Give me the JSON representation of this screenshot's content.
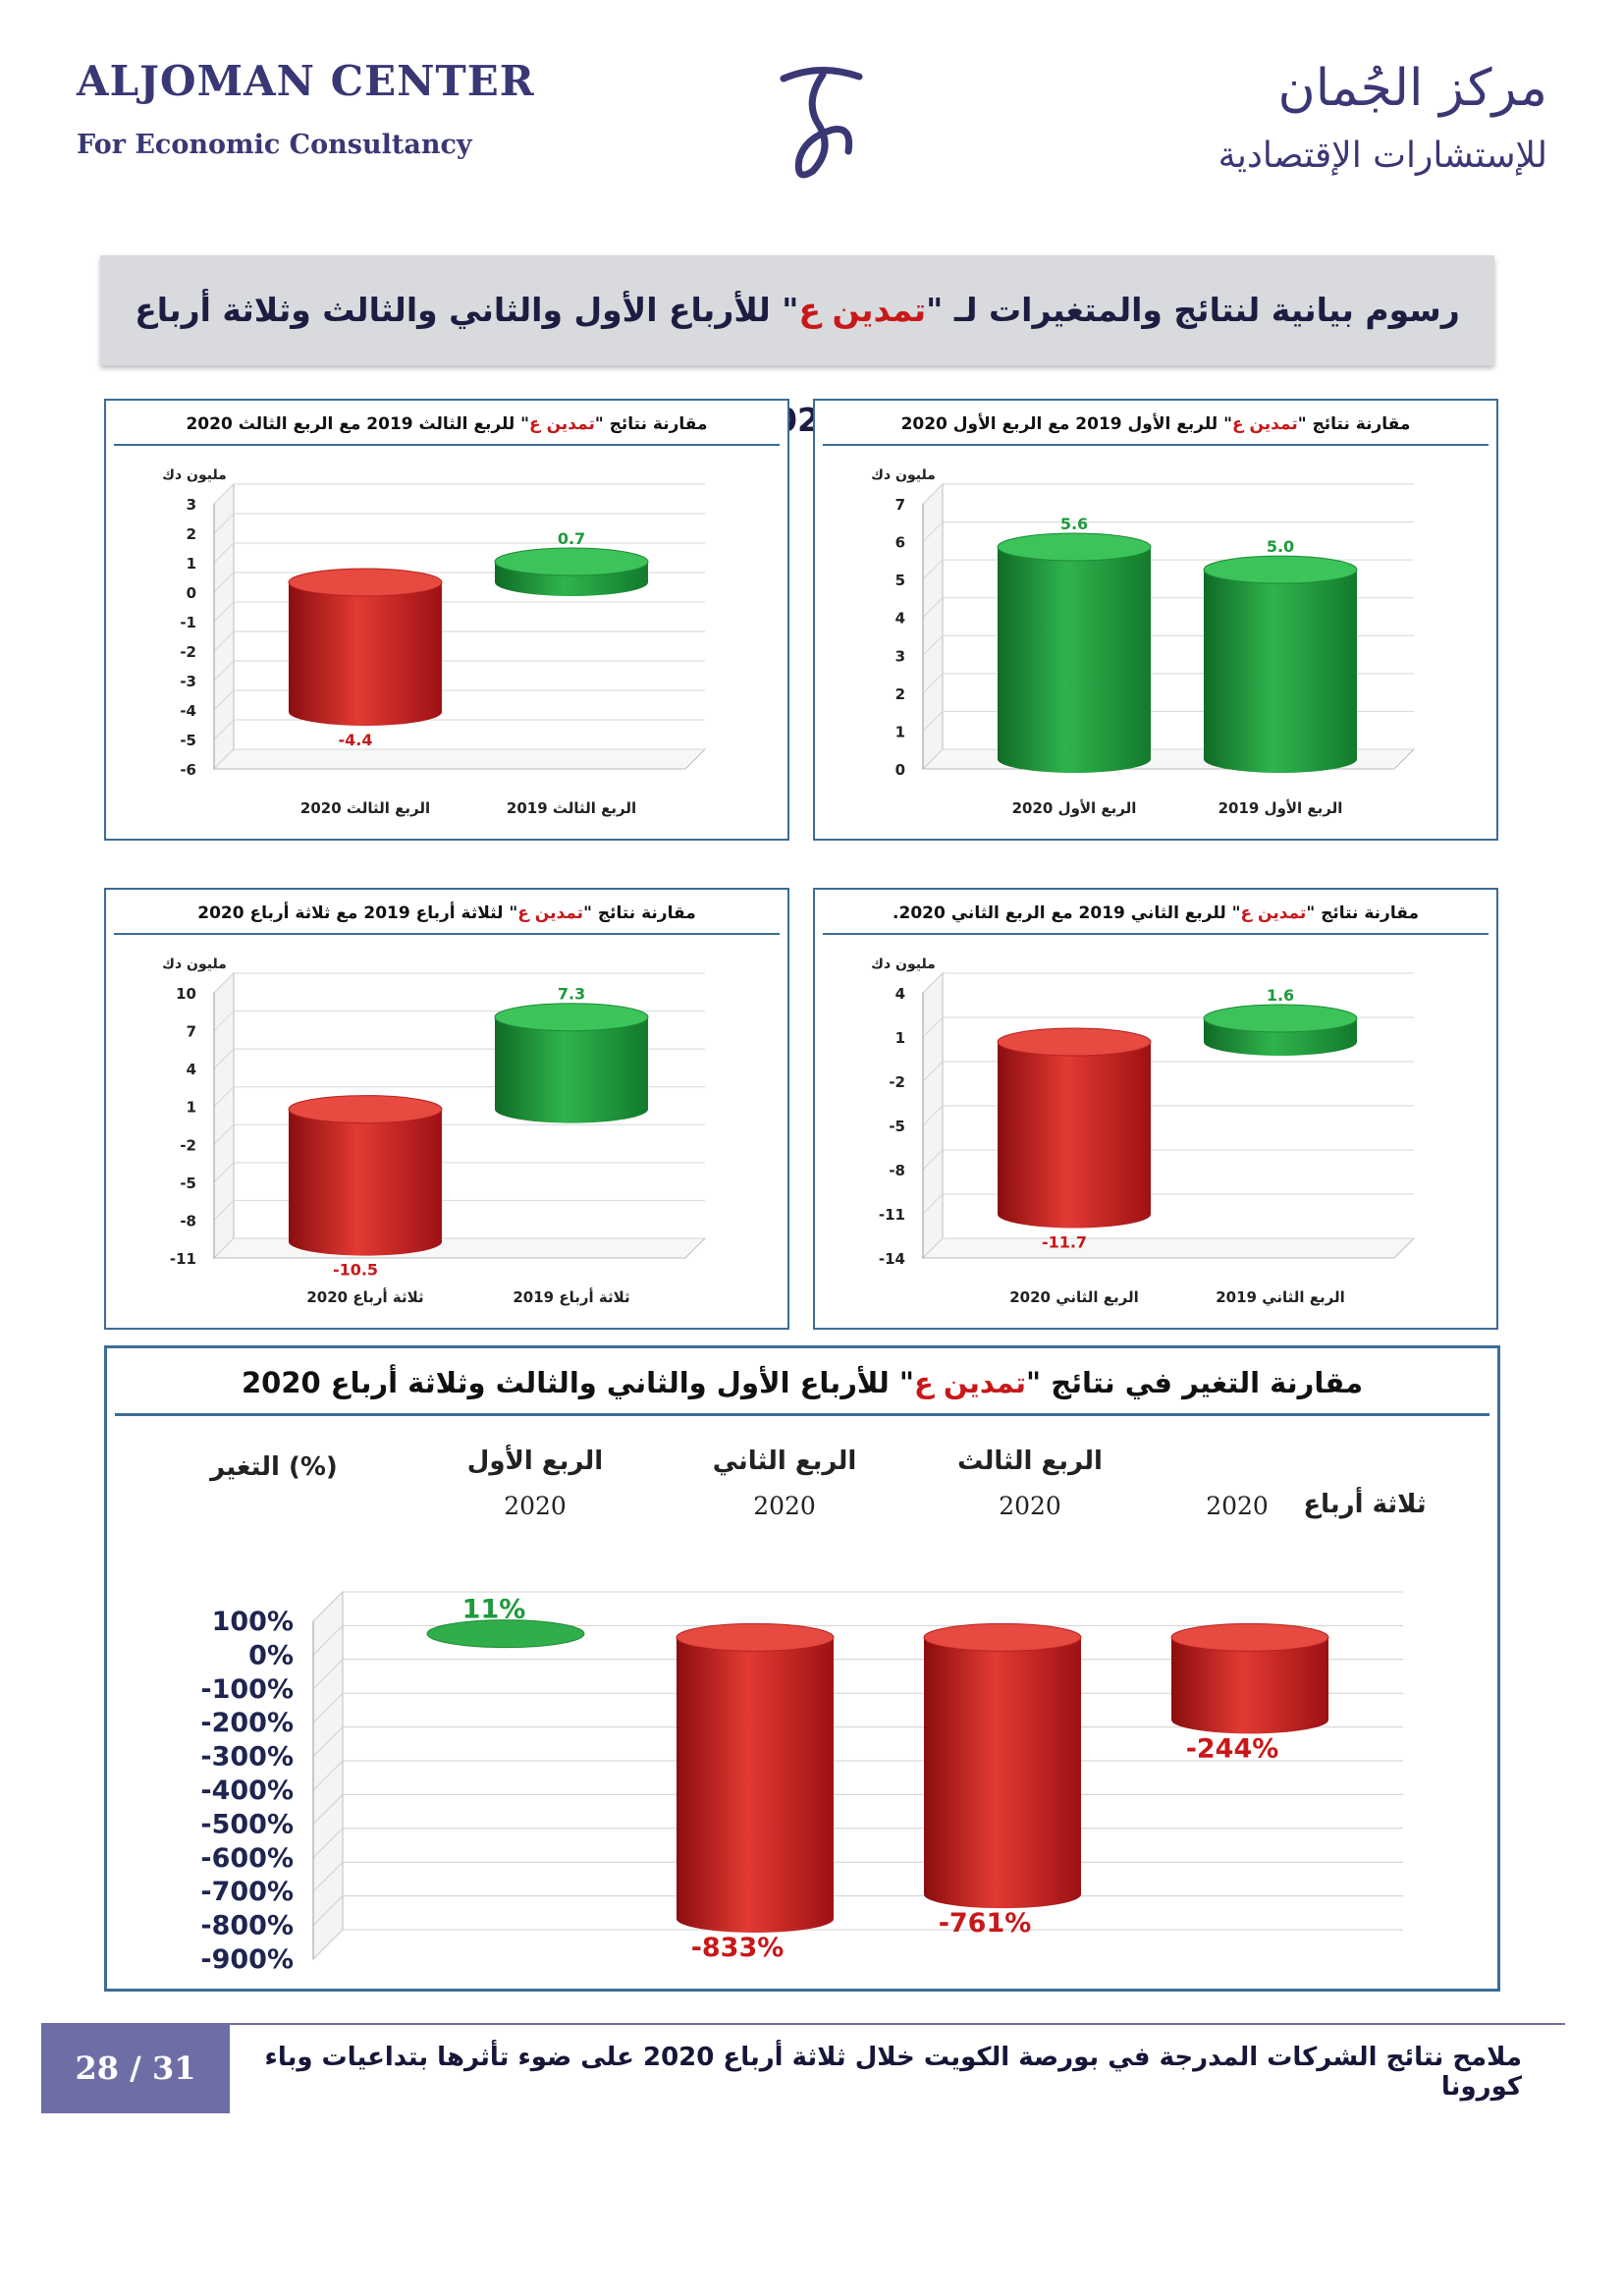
{
  "header": {
    "en_title": "ALJOMAN CENTER",
    "en_subtitle": "For Economic Consultancy",
    "ar_title": "مركز الجُمان",
    "ar_subtitle": "للإستشارات الإقتصادية"
  },
  "banner": {
    "prefix": "رسوم بيانية لنتائج والمتغيرات لـ \"",
    "company": "تمدين ع",
    "suffix": "\" للأرباع الأول والثاني والثالث وثلاثة أرباع 2020"
  },
  "colors": {
    "positive": "#1e9a3c",
    "negative": "#c8181a",
    "frame": "#3b6d98",
    "footer": "#6e6ea6"
  },
  "chart_data": [
    {
      "id": "q1",
      "type": "bar",
      "title_prefix": "مقارنة نتائج \"",
      "title_company": "تمدين ع",
      "title_suffix": "\" للربع الأول 2019 مع الربع الأول 2020",
      "ylabel": "مليون دك",
      "categories": [
        "الربع الأول 2020",
        "الربع الأول 2019"
      ],
      "values": [
        5.6,
        5.0
      ],
      "value_labels": [
        "5.6",
        "5.0"
      ],
      "yticks": [
        "7",
        "6",
        "5",
        "4",
        "3",
        "2",
        "1",
        "0"
      ],
      "ylim": [
        0,
        7
      ],
      "grid": true
    },
    {
      "id": "q3",
      "type": "bar",
      "title_prefix": "مقارنة نتائج \"",
      "title_company": "تمدين ع",
      "title_suffix": "\" للربع الثالث 2019 مع الربع الثالث 2020",
      "ylabel": "مليون دك",
      "categories": [
        "الربع الثالث 2020",
        "الربع الثالث 2019"
      ],
      "values": [
        -4.4,
        0.7
      ],
      "value_labels": [
        "-4.4",
        "0.7"
      ],
      "yticks": [
        "3",
        "2",
        "1",
        "0",
        "-1",
        "-2",
        "-3",
        "-4",
        "-5",
        "-6"
      ],
      "ylim": [
        -6,
        3
      ],
      "grid": true
    },
    {
      "id": "q2",
      "type": "bar",
      "title_prefix": "مقارنة نتائج \"",
      "title_company": "تمدين ع",
      "title_suffix": "\" للربع الثاني 2019 مع الربع الثاني 2020.",
      "ylabel": "مليون دك",
      "categories": [
        "الربع الثاني 2020",
        "الربع الثاني 2019"
      ],
      "values": [
        -11.7,
        1.6
      ],
      "value_labels": [
        "-11.7",
        "1.6"
      ],
      "yticks": [
        "4",
        "1",
        "-2",
        "-5",
        "-8",
        "-11",
        "-14"
      ],
      "ylim": [
        -14,
        4
      ],
      "grid": true
    },
    {
      "id": "nine",
      "type": "bar",
      "title_prefix": "مقارنة نتائج \"",
      "title_company": "تمدين ع",
      "title_suffix": "\" لثلاثة أرباع 2019 مع ثلاثة أرباع 2020",
      "ylabel": "مليون دك",
      "categories": [
        "ثلاثة أرباع 2020",
        "ثلاثة أرباع 2019"
      ],
      "values": [
        -10.5,
        7.3
      ],
      "value_labels": [
        "-10.5",
        "7.3"
      ],
      "yticks": [
        "10",
        "7",
        "4",
        "1",
        "-2",
        "-5",
        "-8",
        "-11"
      ],
      "ylim": [
        -11,
        10
      ],
      "grid": true
    },
    {
      "id": "change",
      "type": "bar",
      "title_prefix": "مقارنة التغير في نتائج \"",
      "title_company": "تمدين ع",
      "title_suffix": "\" للأرباع الأول والثاني والثالث وثلاثة أرباع 2020",
      "ylabel": "التغير (%)",
      "categories": [
        {
          "name": "الربع الأول",
          "year": "2020"
        },
        {
          "name": "الربع الثاني",
          "year": "2020"
        },
        {
          "name": "الربع الثالث",
          "year": "2020"
        },
        {
          "name": "ثلاثة أرباع",
          "year": "2020"
        }
      ],
      "values": [
        11,
        -833,
        -761,
        -244
      ],
      "value_labels": [
        "11%",
        "-833%",
        "-761%",
        "-244%"
      ],
      "yticks": [
        "100%",
        "0%",
        "-100%",
        "-200%",
        "-300%",
        "-400%",
        "-500%",
        "-600%",
        "-700%",
        "-800%",
        "-900%"
      ],
      "ylim": [
        -900,
        100
      ],
      "grid": true
    }
  ],
  "footer": {
    "page": "28 / 31",
    "text": "ملامح نتائج الشركات المدرجة في بورصة الكويت خلال ثلاثة أرباع 2020 على ضوء تأثرها بتداعيات وباء كورونا"
  }
}
